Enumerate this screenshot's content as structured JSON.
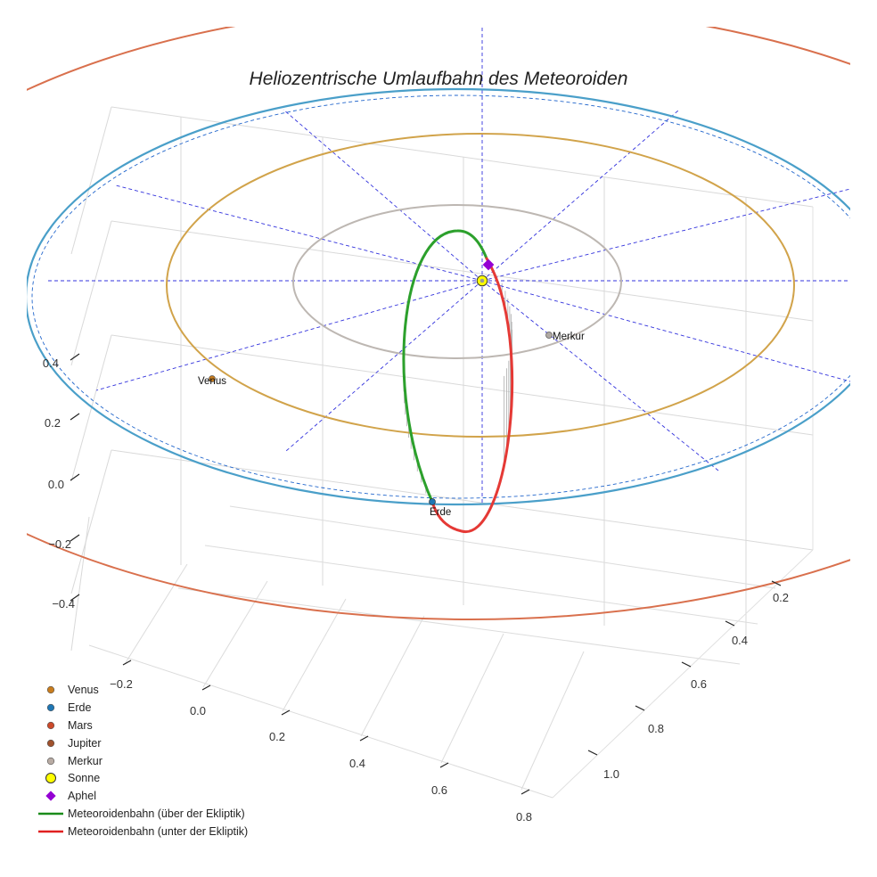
{
  "chart_data": {
    "type": "3d-orbit",
    "title": "Heliozentrische Umlaufbahn des Meteoroiden",
    "axes": {
      "x_ticks": [
        "−0.2",
        "0.0",
        "0.2",
        "0.4",
        "0.6",
        "0.8"
      ],
      "y_ticks": [
        "0.2",
        "0.4",
        "0.6",
        "0.8",
        "1.0"
      ],
      "z_ticks": [
        "0.4",
        "0.2",
        "0.0",
        "−0.2",
        "−0.4"
      ]
    },
    "grid": true,
    "legend_position": "bottom-left",
    "orbits": [
      {
        "name": "Merkur",
        "color": "#bdb7b2"
      },
      {
        "name": "Venus",
        "color": "#d1a34a"
      },
      {
        "name": "Erde",
        "color": "#4a9fc9"
      },
      {
        "name": "Mars",
        "color": "#d9704d"
      }
    ],
    "planets": [
      {
        "name": "Venus",
        "color": "#c97d1e"
      },
      {
        "name": "Erde",
        "color": "#1f77b4"
      },
      {
        "name": "Merkur",
        "color": "#b0a9a3"
      }
    ],
    "meteoroid": {
      "aphel_color": "#9400d3",
      "above_color": "#2ca02c",
      "below_color": "#e53935"
    },
    "legend": [
      {
        "label": "Venus",
        "symbol": "dot",
        "color": "#c97d1e"
      },
      {
        "label": "Erde",
        "symbol": "dot",
        "color": "#1f77b4"
      },
      {
        "label": "Mars",
        "symbol": "dot",
        "color": "#cc4a2a"
      },
      {
        "label": "Jupiter",
        "symbol": "dot",
        "color": "#a0522d"
      },
      {
        "label": "Merkur",
        "symbol": "dot",
        "color": "#b8aba3"
      },
      {
        "label": "Sonne",
        "symbol": "sun",
        "color": "#ffff00"
      },
      {
        "label": "Aphel",
        "symbol": "diamond",
        "color": "#9400d3"
      },
      {
        "label": "Meteoroidenbahn (über der Ekliptik)",
        "symbol": "line",
        "color": "#1a8c1a"
      },
      {
        "label": "Meteoroidenbahn (unter der Ekliptik)",
        "symbol": "line",
        "color": "#e02020"
      }
    ]
  }
}
